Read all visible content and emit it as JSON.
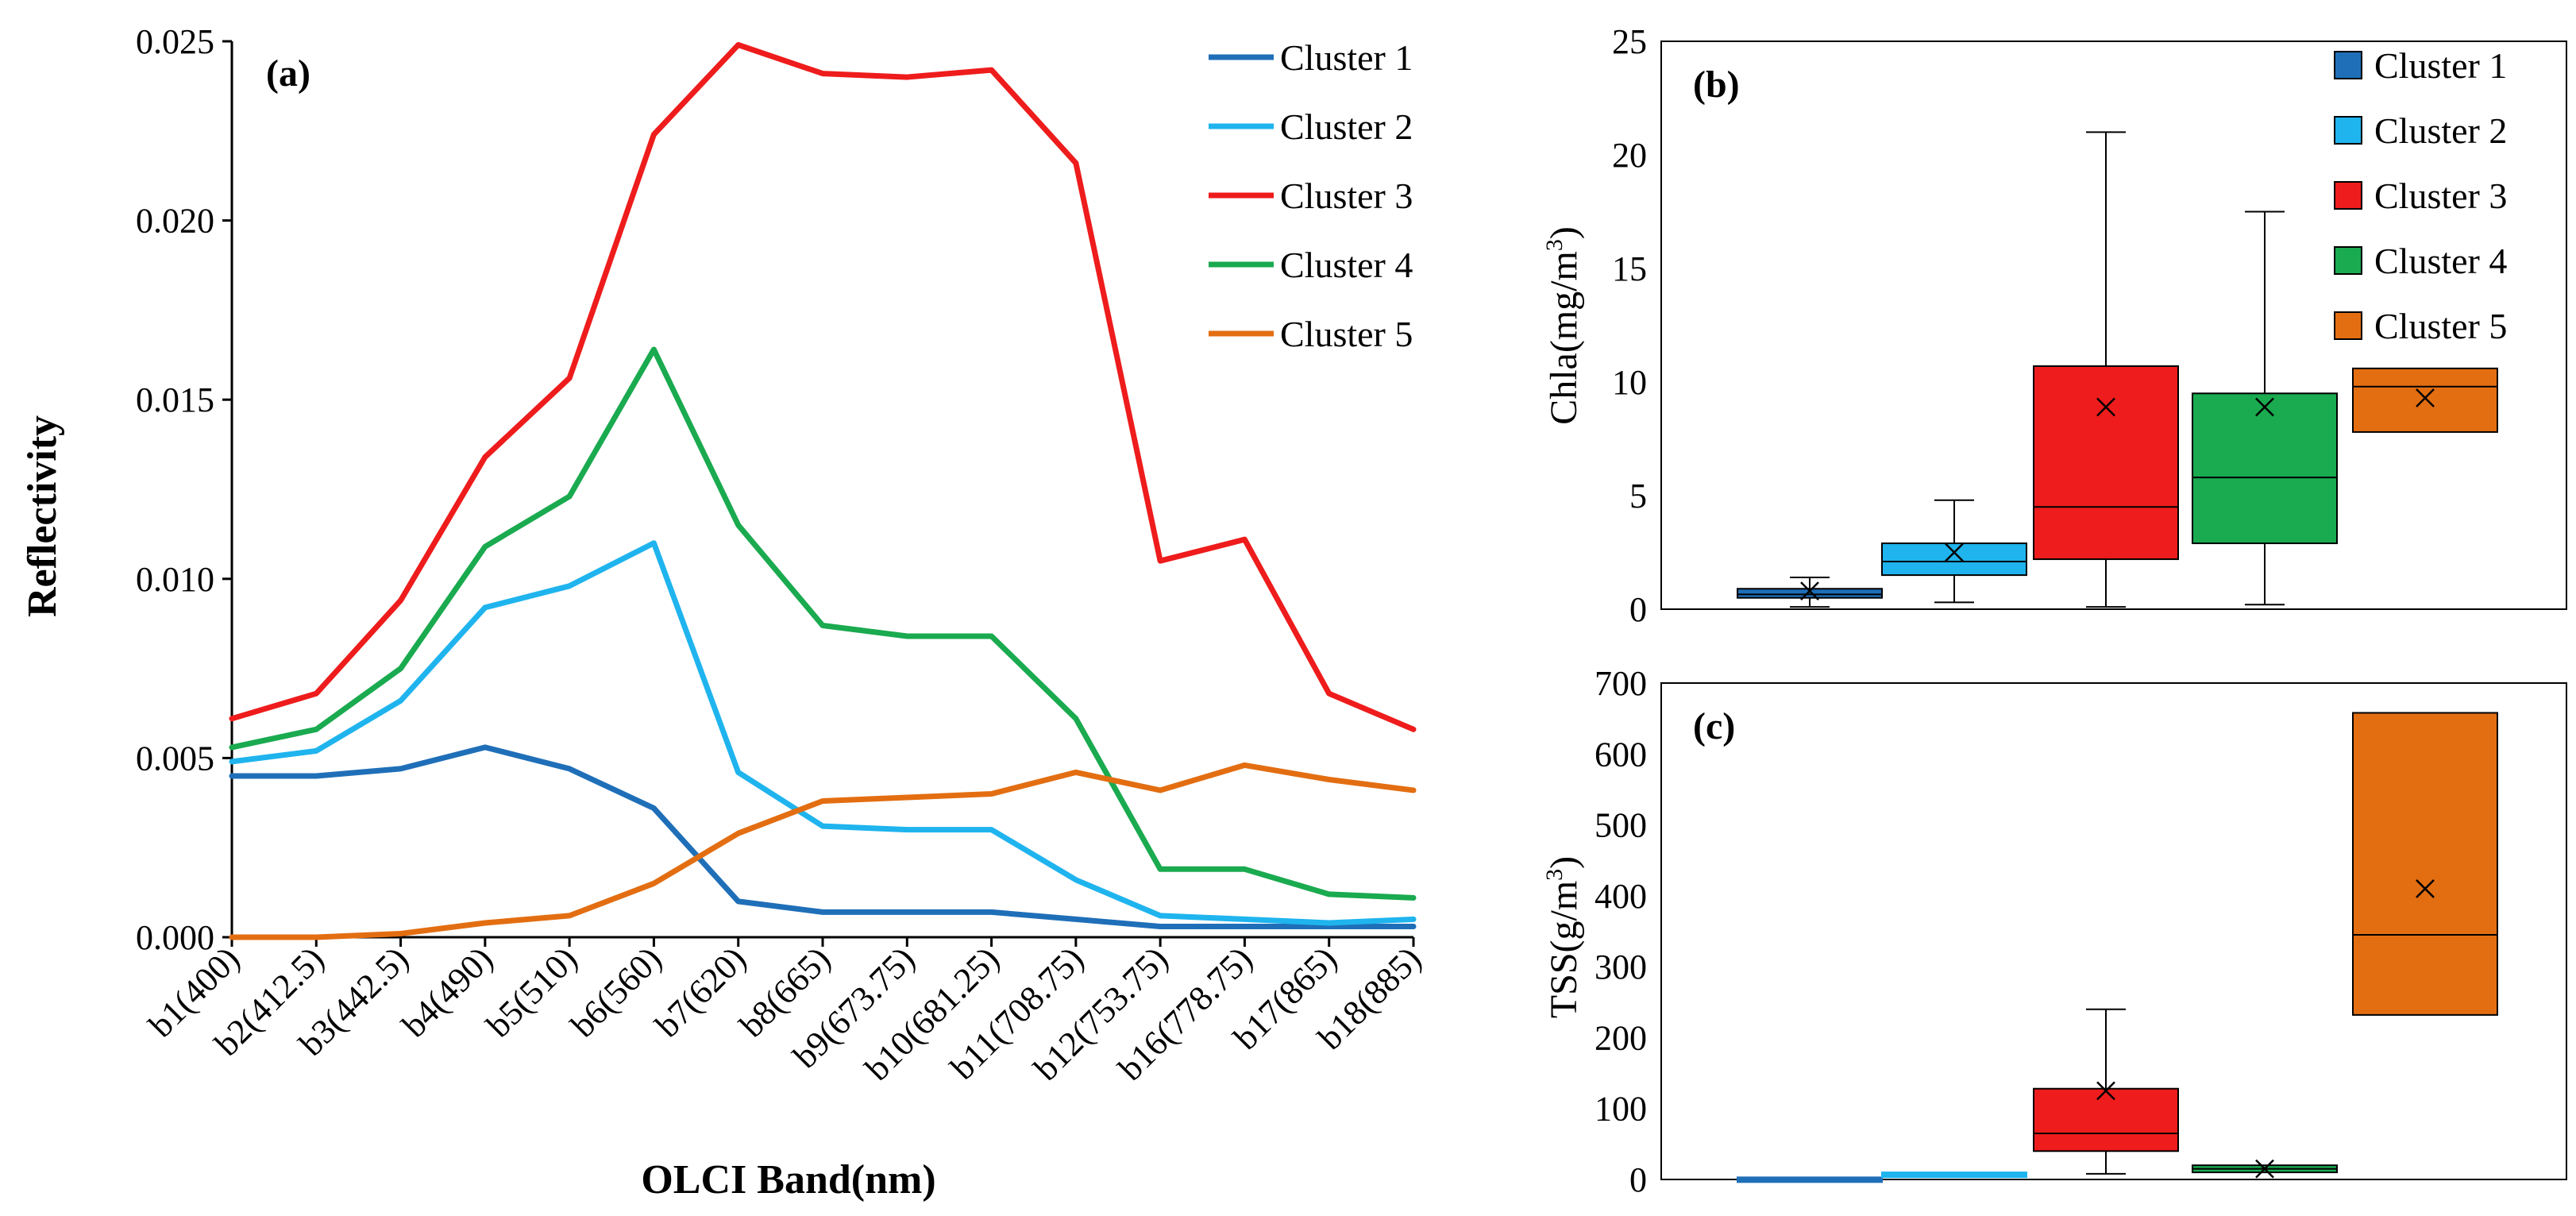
{
  "colors": {
    "cluster1": "#1f6fb8",
    "cluster2": "#1fb4ee",
    "cluster3": "#ee1c1c",
    "cluster4": "#1aaa4f",
    "cluster5": "#e36e12",
    "axis": "#000000"
  },
  "chart_data": [
    {
      "id": "a",
      "type": "line",
      "panel_label": "(a)",
      "xlabel": "OLCI Band(nm)",
      "ylabel": "Reflectivity",
      "ylim": [
        0,
        0.025
      ],
      "yticks": [
        "0.000",
        "0.005",
        "0.010",
        "0.015",
        "0.020",
        "0.025"
      ],
      "ytick_values": [
        0,
        0.005,
        0.01,
        0.015,
        0.02,
        0.025
      ],
      "categories": [
        "b1(400)",
        "b2(412.5)",
        "b3(442.5)",
        "b4(490)",
        "b5(510)",
        "b6(560)",
        "b7(620)",
        "b8(665)",
        "b9(673.75)",
        "b10(681.25)",
        "b11(708.75)",
        "b12(753.75)",
        "b16(778.75)",
        "b17(865)",
        "b18(885)"
      ],
      "legend_position": "top-right",
      "series": [
        {
          "name": "Cluster 1",
          "color_key": "cluster1",
          "values": [
            0.0045,
            0.0045,
            0.0047,
            0.0053,
            0.0047,
            0.0036,
            0.001,
            0.0007,
            0.0007,
            0.0007,
            0.0005,
            0.0003,
            0.0003,
            0.0003,
            0.0003
          ]
        },
        {
          "name": "Cluster 2",
          "color_key": "cluster2",
          "values": [
            0.0049,
            0.0052,
            0.0066,
            0.0092,
            0.0098,
            0.011,
            0.0046,
            0.0031,
            0.003,
            0.003,
            0.0016,
            0.0006,
            0.0005,
            0.0004,
            0.0005
          ]
        },
        {
          "name": "Cluster 3",
          "color_key": "cluster3",
          "values": [
            0.0061,
            0.0068,
            0.0094,
            0.0134,
            0.0156,
            0.0224,
            0.0249,
            0.0241,
            0.024,
            0.0242,
            0.0216,
            0.0105,
            0.0111,
            0.0068,
            0.0058
          ]
        },
        {
          "name": "Cluster 4",
          "color_key": "cluster4",
          "values": [
            0.0053,
            0.0058,
            0.0075,
            0.0109,
            0.0123,
            0.0164,
            0.0115,
            0.0087,
            0.0084,
            0.0084,
            0.0061,
            0.0019,
            0.0019,
            0.0012,
            0.0011
          ]
        },
        {
          "name": "Cluster 5",
          "color_key": "cluster5",
          "values": [
            0.0,
            0.0,
            0.0001,
            0.0004,
            0.0006,
            0.0015,
            0.0029,
            0.0038,
            0.0039,
            0.004,
            0.0046,
            0.0041,
            0.0048,
            0.0044,
            0.0041
          ]
        }
      ]
    },
    {
      "id": "b",
      "type": "box",
      "panel_label": "(b)",
      "ylabel": "Chla(mg/m",
      "ylabel_sup": "3",
      "ylabel_close": ")",
      "ylim": [
        0,
        25
      ],
      "yticks": [
        "0",
        "5",
        "10",
        "15",
        "20",
        "25"
      ],
      "ytick_values": [
        0,
        5,
        10,
        15,
        20,
        25
      ],
      "legend_position": "top-right",
      "boxes": [
        {
          "name": "Cluster 1",
          "color_key": "cluster1",
          "min": 0.1,
          "q1": 0.5,
          "median": 0.65,
          "q3": 0.9,
          "max": 1.4,
          "mean": 0.8
        },
        {
          "name": "Cluster 2",
          "color_key": "cluster2",
          "min": 0.3,
          "q1": 1.5,
          "median": 2.1,
          "q3": 2.9,
          "max": 4.8,
          "mean": 2.5
        },
        {
          "name": "Cluster 3",
          "color_key": "cluster3",
          "min": 0.1,
          "q1": 2.2,
          "median": 4.5,
          "q3": 10.7,
          "max": 21.0,
          "mean": 8.9
        },
        {
          "name": "Cluster 4",
          "color_key": "cluster4",
          "min": 0.2,
          "q1": 2.9,
          "median": 5.8,
          "q3": 9.5,
          "max": 17.5,
          "mean": 8.9
        },
        {
          "name": "Cluster 5",
          "color_key": "cluster5",
          "min": 7.8,
          "q1": 7.8,
          "median": 9.8,
          "q3": 10.6,
          "max": 10.6,
          "mean": 9.3
        }
      ]
    },
    {
      "id": "c",
      "type": "box",
      "panel_label": "(c)",
      "ylabel": "TSS(g/m",
      "ylabel_sup": "3",
      "ylabel_close": ")",
      "ylim": [
        0,
        700
      ],
      "yticks": [
        "0",
        "100",
        "200",
        "300",
        "400",
        "500",
        "600",
        "700"
      ],
      "ytick_values": [
        0,
        100,
        200,
        300,
        400,
        500,
        600,
        700
      ],
      "boxes": [
        {
          "name": "Cluster 1",
          "color_key": "cluster1",
          "min": 1,
          "q1": 1,
          "median": 2,
          "q3": 3,
          "max": 3,
          "mean": 2
        },
        {
          "name": "Cluster 2",
          "color_key": "cluster2",
          "min": 6,
          "q1": 6,
          "median": 8,
          "q3": 10,
          "max": 10,
          "mean": 8
        },
        {
          "name": "Cluster 3",
          "color_key": "cluster3",
          "min": 8,
          "q1": 40,
          "median": 65,
          "q3": 128,
          "max": 240,
          "mean": 125
        },
        {
          "name": "Cluster 4",
          "color_key": "cluster4",
          "min": 10,
          "q1": 10,
          "median": 15,
          "q3": 20,
          "max": 20,
          "mean": 15
        },
        {
          "name": "Cluster 5",
          "color_key": "cluster5",
          "min": 232,
          "q1": 232,
          "median": 345,
          "q3": 658,
          "max": 658,
          "mean": 410
        }
      ]
    }
  ]
}
